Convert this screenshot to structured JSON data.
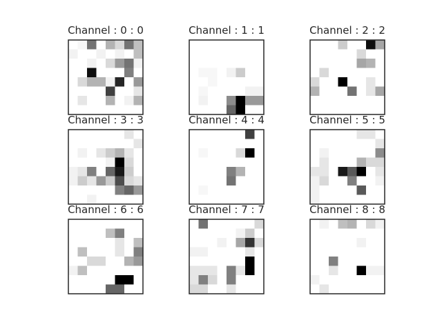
{
  "chart_data": {
    "type": "heatmap",
    "layout": {
      "rows": 3,
      "cols": 3
    },
    "colormap": "gray_r",
    "value_range": [
      0,
      1
    ],
    "grid_size": [
      8,
      8
    ],
    "panels": [
      {
        "title": "Channel : 0 : 0",
        "values": [
          [
            0.0,
            0.03,
            0.55,
            0.0,
            0.3,
            0.15,
            0.55,
            0.25
          ],
          [
            0.05,
            0.0,
            0.0,
            0.05,
            0.0,
            0.05,
            0.0,
            0.25
          ],
          [
            0.0,
            0.0,
            0.05,
            0.0,
            0.15,
            0.4,
            0.55,
            0.05
          ],
          [
            0.0,
            0.0,
            0.95,
            0.0,
            0.0,
            0.0,
            0.5,
            0.0
          ],
          [
            0.0,
            0.15,
            0.3,
            0.3,
            0.05,
            0.85,
            0.0,
            0.4
          ],
          [
            0.0,
            0.0,
            0.0,
            0.0,
            0.75,
            0.0,
            0.0,
            0.1
          ],
          [
            0.0,
            0.1,
            0.0,
            0.0,
            0.3,
            0.0,
            0.05,
            0.3
          ],
          [
            0.0,
            0.0,
            0.0,
            0.0,
            0.0,
            0.0,
            0.0,
            0.0
          ]
        ]
      },
      {
        "title": "Channel : 1 : 1",
        "values": [
          [
            0.0,
            0.0,
            0.0,
            0.0,
            0.0,
            0.0,
            0.0,
            0.0
          ],
          [
            0.0,
            0.0,
            0.0,
            0.0,
            0.0,
            0.0,
            0.0,
            0.0
          ],
          [
            0.0,
            0.0,
            0.0,
            0.0,
            0.0,
            0.0,
            0.0,
            0.0
          ],
          [
            0.0,
            0.03,
            0.03,
            0.0,
            0.05,
            0.2,
            0.0,
            0.0
          ],
          [
            0.0,
            0.0,
            0.03,
            0.0,
            0.0,
            0.0,
            0.0,
            0.0
          ],
          [
            0.0,
            0.03,
            0.0,
            0.0,
            0.0,
            0.0,
            0.05,
            0.05
          ],
          [
            0.0,
            0.05,
            0.0,
            0.0,
            0.45,
            1.0,
            0.4,
            0.4
          ],
          [
            0.0,
            0.0,
            0.0,
            0.0,
            0.6,
            1.0,
            0.0,
            0.0
          ]
        ]
      },
      {
        "title": "Channel : 2 : 2",
        "values": [
          [
            0.0,
            0.0,
            0.0,
            0.2,
            0.0,
            0.0,
            0.95,
            0.35
          ],
          [
            0.0,
            0.0,
            0.0,
            0.0,
            0.0,
            0.15,
            0.0,
            0.0
          ],
          [
            0.0,
            0.0,
            0.0,
            0.0,
            0.0,
            0.35,
            0.3,
            0.0
          ],
          [
            0.0,
            0.15,
            0.0,
            0.0,
            0.0,
            0.0,
            0.0,
            0.0
          ],
          [
            0.15,
            0.0,
            0.0,
            1.0,
            0.0,
            0.0,
            0.1,
            0.0
          ],
          [
            0.3,
            0.0,
            0.0,
            0.0,
            0.55,
            0.0,
            0.1,
            0.35
          ],
          [
            0.0,
            0.0,
            0.0,
            0.0,
            0.0,
            0.0,
            0.0,
            0.0
          ],
          [
            0.0,
            0.0,
            0.0,
            0.0,
            0.0,
            0.0,
            0.0,
            0.0
          ]
        ]
      },
      {
        "title": "Channel : 3 : 3",
        "values": [
          [
            0.0,
            0.0,
            0.0,
            0.0,
            0.0,
            0.0,
            0.1,
            0.0
          ],
          [
            0.0,
            0.0,
            0.0,
            0.0,
            0.0,
            0.0,
            0.0,
            0.1
          ],
          [
            0.0,
            0.05,
            0.0,
            0.1,
            0.2,
            0.3,
            0.1,
            0.0
          ],
          [
            0.0,
            0.0,
            0.0,
            0.0,
            0.05,
            1.0,
            0.15,
            0.0
          ],
          [
            0.05,
            0.1,
            0.5,
            0.0,
            0.6,
            0.9,
            0.2,
            0.0
          ],
          [
            0.05,
            0.2,
            0.1,
            0.4,
            0.2,
            0.7,
            0.15,
            0.1
          ],
          [
            0.0,
            0.0,
            0.0,
            0.0,
            0.0,
            0.5,
            0.6,
            0.4
          ],
          [
            0.0,
            0.0,
            0.05,
            0.0,
            0.0,
            0.0,
            0.0,
            0.0
          ]
        ]
      },
      {
        "title": "Channel : 4 : 4",
        "values": [
          [
            0.0,
            0.0,
            0.0,
            0.0,
            0.0,
            0.0,
            0.75,
            0.0
          ],
          [
            0.0,
            0.0,
            0.0,
            0.0,
            0.0,
            0.0,
            0.0,
            0.0
          ],
          [
            0.0,
            0.03,
            0.0,
            0.0,
            0.0,
            0.15,
            1.0,
            0.0
          ],
          [
            0.0,
            0.0,
            0.0,
            0.0,
            0.0,
            0.0,
            0.0,
            0.0
          ],
          [
            0.0,
            0.0,
            0.0,
            0.0,
            0.5,
            0.3,
            0.0,
            0.0
          ],
          [
            0.0,
            0.0,
            0.0,
            0.0,
            0.55,
            0.0,
            0.0,
            0.0
          ],
          [
            0.0,
            0.03,
            0.0,
            0.0,
            0.0,
            0.0,
            0.0,
            0.0
          ],
          [
            0.0,
            0.0,
            0.0,
            0.0,
            0.0,
            0.0,
            0.0,
            0.0
          ]
        ]
      },
      {
        "title": "Channel : 5 : 5",
        "values": [
          [
            0.0,
            0.0,
            0.0,
            0.0,
            0.0,
            0.1,
            0.1,
            0.0
          ],
          [
            0.0,
            0.0,
            0.0,
            0.0,
            0.0,
            0.0,
            0.0,
            0.1
          ],
          [
            0.0,
            0.05,
            0.0,
            0.0,
            0.0,
            0.0,
            0.0,
            0.45
          ],
          [
            0.0,
            0.1,
            0.0,
            0.0,
            0.0,
            0.3,
            0.15,
            0.15
          ],
          [
            0.1,
            0.1,
            0.0,
            0.9,
            0.65,
            1.0,
            0.0,
            0.1
          ],
          [
            0.05,
            0.15,
            0.0,
            0.0,
            0.5,
            0.0,
            0.0,
            0.05
          ],
          [
            0.05,
            0.0,
            0.0,
            0.0,
            0.0,
            0.65,
            0.0,
            0.0
          ],
          [
            0.05,
            0.0,
            0.0,
            0.0,
            0.0,
            0.0,
            0.0,
            0.0
          ]
        ]
      },
      {
        "title": "Channel : 6 : 6",
        "values": [
          [
            0.0,
            0.0,
            0.0,
            0.0,
            0.0,
            0.0,
            0.0,
            0.0
          ],
          [
            0.0,
            0.0,
            0.0,
            0.0,
            0.25,
            0.5,
            0.0,
            0.0
          ],
          [
            0.0,
            0.0,
            0.0,
            0.0,
            0.0,
            0.1,
            0.0,
            0.25
          ],
          [
            0.0,
            0.25,
            0.0,
            0.0,
            0.0,
            0.1,
            0.0,
            0.5
          ],
          [
            0.0,
            0.0,
            0.15,
            0.15,
            0.0,
            0.0,
            0.3,
            0.4
          ],
          [
            0.05,
            0.25,
            0.0,
            0.0,
            0.0,
            0.0,
            0.0,
            0.0
          ],
          [
            0.0,
            0.0,
            0.0,
            0.0,
            0.0,
            1.0,
            1.0,
            0.0
          ],
          [
            0.0,
            0.0,
            0.0,
            0.0,
            0.6,
            0.6,
            0.0,
            0.0
          ]
        ]
      },
      {
        "title": "Channel : 7 : 7",
        "values": [
          [
            0.0,
            0.55,
            0.0,
            0.0,
            0.0,
            0.0,
            0.0,
            0.15
          ],
          [
            0.0,
            0.0,
            0.0,
            0.0,
            0.0,
            0.05,
            0.2,
            0.0
          ],
          [
            0.0,
            0.0,
            0.0,
            0.05,
            0.0,
            0.35,
            0.8,
            0.15
          ],
          [
            0.05,
            0.05,
            0.0,
            0.0,
            0.0,
            0.0,
            0.1,
            0.0
          ],
          [
            0.0,
            0.0,
            0.0,
            0.0,
            0.0,
            0.0,
            1.0,
            0.0
          ],
          [
            0.1,
            0.1,
            0.1,
            0.0,
            0.5,
            0.1,
            1.0,
            0.0
          ],
          [
            0.1,
            0.5,
            0.15,
            0.0,
            0.5,
            0.0,
            0.0,
            0.0
          ],
          [
            0.15,
            0.15,
            0.0,
            0.0,
            0.1,
            0.0,
            0.0,
            0.0
          ]
        ]
      },
      {
        "title": "Channel : 8 : 8",
        "values": [
          [
            0.0,
            0.05,
            0.0,
            0.25,
            0.3,
            0.0,
            0.15,
            0.05
          ],
          [
            0.0,
            0.0,
            0.0,
            0.0,
            0.0,
            0.0,
            0.0,
            0.0
          ],
          [
            0.0,
            0.0,
            0.0,
            0.0,
            0.0,
            0.05,
            0.0,
            0.0
          ],
          [
            0.0,
            0.0,
            0.0,
            0.0,
            0.0,
            0.0,
            0.0,
            0.0
          ],
          [
            0.0,
            0.0,
            0.5,
            0.0,
            0.0,
            0.0,
            0.0,
            0.0
          ],
          [
            0.0,
            0.0,
            0.1,
            0.0,
            0.0,
            1.0,
            0.05,
            0.05
          ],
          [
            0.05,
            0.0,
            0.0,
            0.0,
            0.0,
            0.0,
            0.0,
            0.0
          ],
          [
            0.0,
            0.1,
            0.0,
            0.0,
            0.0,
            0.0,
            0.0,
            0.0
          ]
        ]
      }
    ]
  }
}
